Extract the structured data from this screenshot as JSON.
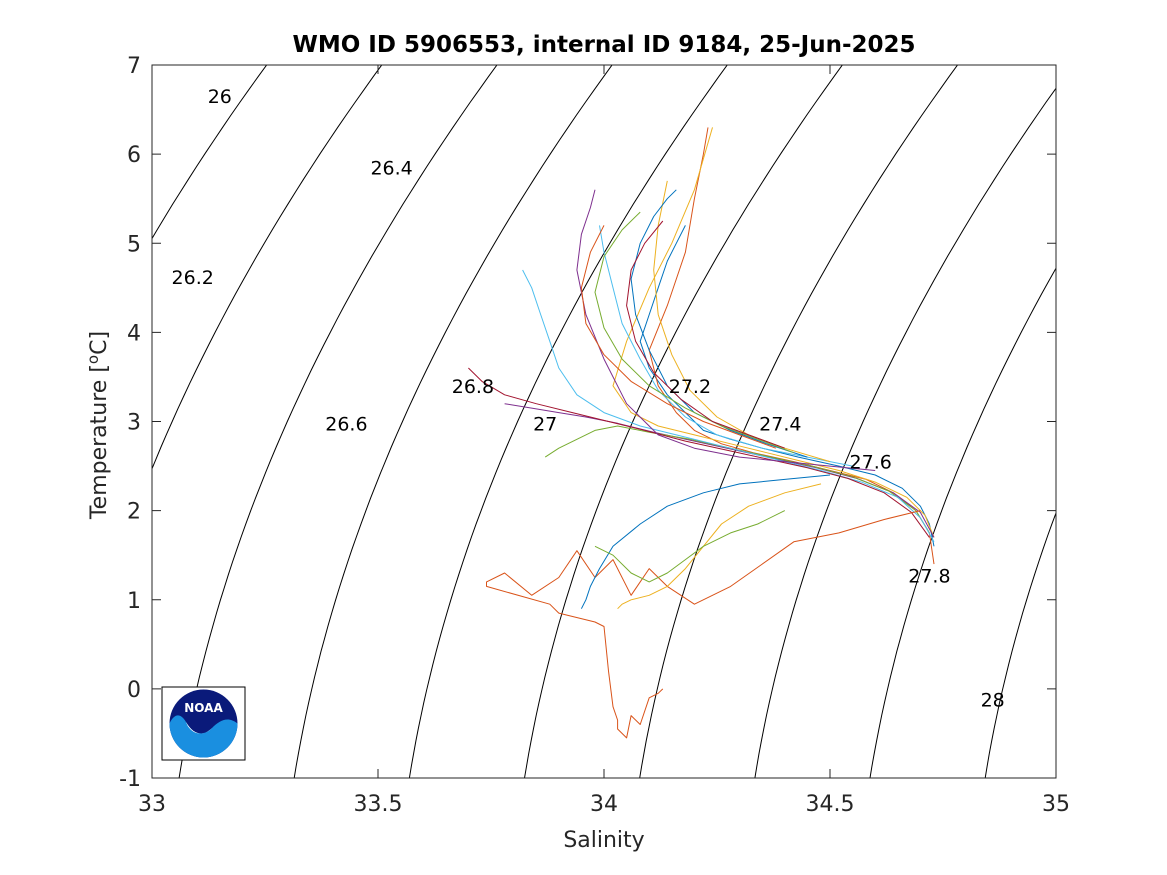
{
  "chart_data": {
    "type": "line",
    "title": "WMO ID 5906553, internal ID 9184, 25-Jun-2025",
    "xlabel": "Salinity",
    "ylabel_main": "Temperature [",
    "ylabel_sup": "o",
    "ylabel_end": "C]",
    "xlim": [
      33,
      35
    ],
    "ylim": [
      -1,
      7
    ],
    "xticks": [
      33,
      33.5,
      34,
      34.5,
      35
    ],
    "xtick_labels": [
      "33",
      "33.5",
      "34",
      "34.5",
      "35"
    ],
    "yticks": [
      -1,
      0,
      1,
      2,
      3,
      4,
      5,
      6,
      7
    ],
    "ytick_labels": [
      "-1",
      "0",
      "1",
      "2",
      "3",
      "4",
      "5",
      "6",
      "7"
    ],
    "grid": false,
    "density_contours": {
      "levels": [
        26,
        26.2,
        26.4,
        26.6,
        26.8,
        27,
        27.2,
        27.4,
        27.6,
        27.8,
        28
      ],
      "labels": [
        {
          "text": "26",
          "s": 33.15,
          "t": 6.65
        },
        {
          "text": "26.2",
          "s": 33.09,
          "t": 4.62
        },
        {
          "text": "26.4",
          "s": 33.53,
          "t": 5.85
        },
        {
          "text": "26.6",
          "s": 33.43,
          "t": 2.98
        },
        {
          "text": "26.8",
          "s": 33.71,
          "t": 3.4
        },
        {
          "text": "27",
          "s": 33.87,
          "t": 2.98
        },
        {
          "text": "27.2",
          "s": 34.19,
          "t": 3.4
        },
        {
          "text": "27.4",
          "s": 34.39,
          "t": 2.98
        },
        {
          "text": "27.6",
          "s": 34.59,
          "t": 2.55
        },
        {
          "text": "27.8",
          "s": 34.72,
          "t": 1.27
        },
        {
          "text": "28",
          "s": 34.86,
          "t": -0.12
        }
      ]
    },
    "series": [
      {
        "color": "#0072BD",
        "s": [
          34.73,
          34.72,
          34.7,
          34.66,
          34.6,
          34.52,
          34.43,
          34.35,
          34.28,
          34.22,
          34.18,
          34.14,
          34.1,
          34.08,
          34.1,
          34.12,
          34.14,
          34.16,
          34.18
        ],
        "t": [
          1.6,
          1.85,
          2.05,
          2.25,
          2.4,
          2.5,
          2.6,
          2.7,
          2.8,
          2.9,
          3.1,
          3.3,
          3.6,
          3.9,
          4.2,
          4.5,
          4.8,
          5.0,
          5.2
        ]
      },
      {
        "color": "#D95319",
        "s": [
          34.73,
          34.72,
          34.69,
          34.64,
          34.58,
          34.5,
          34.42,
          34.33,
          34.26,
          34.2,
          34.16,
          34.12,
          34.1,
          34.14,
          34.18,
          34.2,
          34.22,
          34.23
        ],
        "t": [
          1.4,
          1.75,
          2.0,
          2.2,
          2.35,
          2.45,
          2.55,
          2.65,
          2.75,
          2.9,
          3.1,
          3.4,
          3.8,
          4.3,
          4.9,
          5.5,
          6.0,
          6.3
        ]
      },
      {
        "color": "#EDB120",
        "s": [
          34.73,
          34.71,
          34.67,
          34.6,
          34.52,
          34.44,
          34.36,
          34.28,
          34.2,
          34.12,
          34.06,
          34.02,
          34.05,
          34.1,
          34.15,
          34.2,
          34.24
        ],
        "t": [
          1.7,
          1.95,
          2.15,
          2.32,
          2.45,
          2.55,
          2.65,
          2.75,
          2.85,
          2.95,
          3.1,
          3.4,
          3.9,
          4.5,
          5.0,
          5.6,
          6.3
        ]
      },
      {
        "color": "#7E2F8E",
        "s": [
          34.73,
          34.7,
          34.64,
          34.56,
          34.47,
          34.38,
          34.29,
          34.2,
          34.11,
          34.03,
          33.96,
          33.9,
          33.84,
          33.78
        ],
        "t": [
          1.7,
          1.98,
          2.2,
          2.36,
          2.48,
          2.58,
          2.68,
          2.78,
          2.88,
          2.98,
          3.05,
          3.1,
          3.15,
          3.2
        ]
      },
      {
        "color": "#77AC30",
        "s": [
          34.72,
          34.69,
          34.63,
          34.55,
          34.46,
          34.37,
          34.28,
          34.19,
          34.1,
          34.03,
          33.98,
          33.94,
          33.9,
          33.87
        ],
        "t": [
          1.75,
          2.0,
          2.22,
          2.38,
          2.5,
          2.6,
          2.7,
          2.8,
          2.88,
          2.95,
          2.9,
          2.8,
          2.7,
          2.6
        ]
      },
      {
        "color": "#4DBEEE",
        "s": [
          34.73,
          34.7,
          34.65,
          34.57,
          34.48,
          34.4,
          34.32,
          34.24,
          34.16,
          34.08,
          34.0,
          33.94,
          33.9,
          33.88,
          33.86,
          33.84,
          33.82
        ],
        "t": [
          1.65,
          1.92,
          2.15,
          2.32,
          2.45,
          2.55,
          2.65,
          2.75,
          2.85,
          2.95,
          3.1,
          3.3,
          3.6,
          3.9,
          4.2,
          4.5,
          4.7
        ]
      },
      {
        "color": "#A2142F",
        "s": [
          34.72,
          34.68,
          34.62,
          34.54,
          34.45,
          34.36,
          34.27,
          34.18,
          34.09,
          34.01,
          33.93,
          33.85,
          33.78,
          33.73,
          33.7
        ],
        "t": [
          1.7,
          1.98,
          2.2,
          2.36,
          2.48,
          2.58,
          2.68,
          2.78,
          2.9,
          3.0,
          3.1,
          3.2,
          3.3,
          3.45,
          3.6
        ]
      },
      {
        "color": "#D95319",
        "s": [
          34.7,
          34.62,
          34.52,
          34.42,
          34.35,
          34.28,
          34.24,
          34.2,
          34.14,
          34.1,
          34.06,
          34.02,
          33.98,
          33.94,
          33.9,
          33.84,
          33.78,
          33.74,
          33.74,
          33.88,
          33.9,
          33.98,
          34.0,
          34.01,
          34.02,
          34.03,
          34.03,
          34.05,
          34.06,
          34.08,
          34.1,
          34.12,
          34.13
        ],
        "t": [
          2.0,
          1.9,
          1.75,
          1.65,
          1.4,
          1.15,
          1.05,
          0.95,
          1.15,
          1.35,
          1.05,
          1.45,
          1.25,
          1.55,
          1.25,
          1.05,
          1.3,
          1.2,
          1.15,
          0.95,
          0.85,
          0.75,
          0.7,
          0.2,
          -0.2,
          -0.35,
          -0.45,
          -0.55,
          -0.3,
          -0.4,
          -0.1,
          -0.05,
          0.0
        ]
      },
      {
        "color": "#0072BD",
        "s": [
          34.5,
          34.4,
          34.3,
          34.22,
          34.14,
          34.08,
          34.02,
          33.99,
          33.97,
          33.96,
          33.95
        ],
        "t": [
          2.4,
          2.35,
          2.3,
          2.2,
          2.05,
          1.85,
          1.6,
          1.35,
          1.15,
          1.0,
          0.9
        ]
      },
      {
        "color": "#EDB120",
        "s": [
          34.48,
          34.4,
          34.32,
          34.26,
          34.22,
          34.18,
          34.14,
          34.1,
          34.06,
          34.04,
          34.03
        ],
        "t": [
          2.3,
          2.2,
          2.05,
          1.85,
          1.6,
          1.35,
          1.15,
          1.05,
          1.0,
          0.95,
          0.9
        ]
      },
      {
        "color": "#77AC30",
        "s": [
          34.4,
          34.34,
          34.28,
          34.22,
          34.18,
          34.14,
          34.1,
          34.06,
          34.02,
          33.98
        ],
        "t": [
          2.0,
          1.85,
          1.75,
          1.6,
          1.45,
          1.3,
          1.2,
          1.3,
          1.5,
          1.6
        ]
      },
      {
        "color": "#7E2F8E",
        "s": [
          34.6,
          34.5,
          34.4,
          34.3,
          34.2,
          34.12,
          34.05,
          34.0,
          33.96,
          33.94,
          33.95,
          33.97,
          33.98
        ],
        "t": [
          2.45,
          2.5,
          2.55,
          2.6,
          2.7,
          2.85,
          3.2,
          3.7,
          4.2,
          4.7,
          5.1,
          5.4,
          5.6
        ]
      },
      {
        "color": "#4DBEEE",
        "s": [
          34.55,
          34.45,
          34.35,
          34.25,
          34.18,
          34.12,
          34.08,
          34.04,
          34.02,
          34.0,
          33.99
        ],
        "t": [
          2.5,
          2.6,
          2.7,
          2.85,
          3.05,
          3.35,
          3.7,
          4.1,
          4.5,
          4.9,
          5.2
        ]
      },
      {
        "color": "#EDB120",
        "s": [
          34.5,
          34.4,
          34.32,
          34.25,
          34.19,
          34.15,
          34.12,
          34.11,
          34.12,
          34.14
        ],
        "t": [
          2.55,
          2.7,
          2.85,
          3.05,
          3.35,
          3.75,
          4.2,
          4.7,
          5.2,
          5.7
        ]
      },
      {
        "color": "#0072BD",
        "s": [
          34.45,
          34.36,
          34.28,
          34.2,
          34.14,
          34.1,
          34.07,
          34.06,
          34.08,
          34.11,
          34.14,
          34.16
        ],
        "t": [
          2.6,
          2.75,
          2.9,
          3.1,
          3.4,
          3.8,
          4.2,
          4.6,
          5.0,
          5.3,
          5.5,
          5.6
        ]
      },
      {
        "color": "#D95319",
        "s": [
          34.38,
          34.3,
          34.22,
          34.14,
          34.06,
          34.0,
          33.96,
          33.95,
          33.97,
          34.0
        ],
        "t": [
          2.7,
          2.85,
          3.0,
          3.2,
          3.45,
          3.75,
          4.1,
          4.5,
          4.9,
          5.2
        ]
      },
      {
        "color": "#77AC30",
        "s": [
          34.42,
          34.34,
          34.26,
          34.18,
          34.1,
          34.04,
          34.0,
          33.98,
          34.0,
          34.04,
          34.08
        ],
        "t": [
          2.65,
          2.8,
          2.95,
          3.15,
          3.4,
          3.7,
          4.05,
          4.45,
          4.85,
          5.15,
          5.35
        ]
      },
      {
        "color": "#A2142F",
        "s": [
          34.4,
          34.32,
          34.24,
          34.17,
          34.11,
          34.07,
          34.05,
          34.06,
          34.09,
          34.13
        ],
        "t": [
          2.7,
          2.85,
          3.0,
          3.25,
          3.55,
          3.9,
          4.3,
          4.7,
          5.0,
          5.25
        ]
      }
    ]
  },
  "logo": {
    "text": "NOAA"
  }
}
